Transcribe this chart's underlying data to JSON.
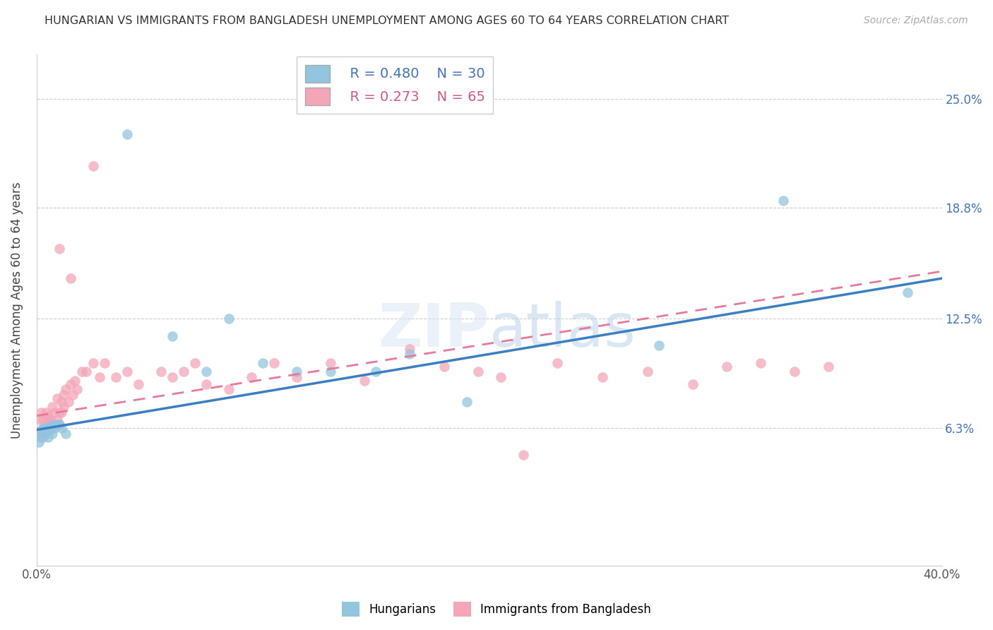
{
  "title": "HUNGARIAN VS IMMIGRANTS FROM BANGLADESH UNEMPLOYMENT AMONG AGES 60 TO 64 YEARS CORRELATION CHART",
  "source": "Source: ZipAtlas.com",
  "ylabel": "Unemployment Among Ages 60 to 64 years",
  "xlim": [
    0.0,
    0.4
  ],
  "ylim": [
    -0.015,
    0.275
  ],
  "xtick_positions": [
    0.0,
    0.4
  ],
  "xticklabels": [
    "0.0%",
    "40.0%"
  ],
  "ytick_positions": [
    0.063,
    0.125,
    0.188,
    0.25
  ],
  "ytick_labels": [
    "6.3%",
    "12.5%",
    "18.8%",
    "25.0%"
  ],
  "blue_R": 0.48,
  "blue_N": 30,
  "pink_R": 0.273,
  "pink_N": 65,
  "blue_color": "#92c5de",
  "pink_color": "#f4a6b8",
  "blue_line_color": "#3a7fc1",
  "pink_line_color": "#e8799a",
  "watermark_zip": "ZIP",
  "watermark_atlas": "atlas",
  "blue_x": [
    0.001,
    0.002,
    0.002,
    0.003,
    0.003,
    0.004,
    0.004,
    0.005,
    0.005,
    0.006,
    0.007,
    0.007,
    0.008,
    0.009,
    0.01,
    0.011,
    0.013,
    0.04,
    0.06,
    0.075,
    0.085,
    0.1,
    0.115,
    0.13,
    0.15,
    0.165,
    0.19,
    0.275,
    0.33,
    0.385
  ],
  "blue_y": [
    0.055,
    0.062,
    0.058,
    0.063,
    0.06,
    0.06,
    0.063,
    0.062,
    0.058,
    0.063,
    0.065,
    0.06,
    0.063,
    0.065,
    0.065,
    0.063,
    0.06,
    0.23,
    0.115,
    0.095,
    0.125,
    0.1,
    0.095,
    0.095,
    0.095,
    0.105,
    0.078,
    0.11,
    0.192,
    0.14
  ],
  "pink_x": [
    0.001,
    0.001,
    0.002,
    0.002,
    0.003,
    0.003,
    0.004,
    0.004,
    0.005,
    0.005,
    0.006,
    0.006,
    0.007,
    0.007,
    0.008,
    0.008,
    0.009,
    0.009,
    0.01,
    0.01,
    0.011,
    0.011,
    0.012,
    0.012,
    0.013,
    0.014,
    0.015,
    0.016,
    0.017,
    0.018,
    0.02,
    0.022,
    0.025,
    0.028,
    0.03,
    0.035,
    0.04,
    0.045,
    0.055,
    0.06,
    0.065,
    0.07,
    0.075,
    0.085,
    0.095,
    0.105,
    0.115,
    0.13,
    0.145,
    0.165,
    0.18,
    0.195,
    0.205,
    0.215,
    0.23,
    0.25,
    0.27,
    0.29,
    0.305,
    0.32,
    0.335,
    0.35,
    0.01,
    0.015,
    0.025
  ],
  "pink_y": [
    0.068,
    0.06,
    0.072,
    0.062,
    0.068,
    0.058,
    0.072,
    0.065,
    0.068,
    0.07,
    0.062,
    0.068,
    0.075,
    0.065,
    0.072,
    0.065,
    0.08,
    0.068,
    0.065,
    0.072,
    0.078,
    0.072,
    0.082,
    0.075,
    0.085,
    0.078,
    0.088,
    0.082,
    0.09,
    0.085,
    0.095,
    0.095,
    0.1,
    0.092,
    0.1,
    0.092,
    0.095,
    0.088,
    0.095,
    0.092,
    0.095,
    0.1,
    0.088,
    0.085,
    0.092,
    0.1,
    0.092,
    0.1,
    0.09,
    0.108,
    0.098,
    0.095,
    0.092,
    0.048,
    0.1,
    0.092,
    0.095,
    0.088,
    0.098,
    0.1,
    0.095,
    0.098,
    0.165,
    0.148,
    0.212
  ],
  "blue_line_x": [
    0.0,
    0.4
  ],
  "blue_line_y": [
    0.062,
    0.148
  ],
  "pink_line_x": [
    0.0,
    0.4
  ],
  "pink_line_y": [
    0.07,
    0.152
  ]
}
